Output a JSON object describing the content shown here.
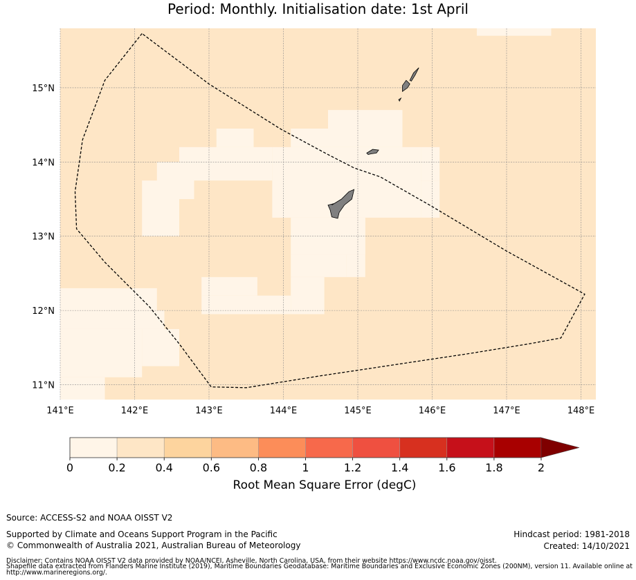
{
  "title": {
    "line2": "Period: Monthly. Initialisation date: 1st April"
  },
  "map": {
    "lat_ticks": [
      15,
      14,
      13,
      12,
      11
    ],
    "lat_labels": [
      "15°N",
      "14°N",
      "13°N",
      "12°N",
      "11°N"
    ],
    "lon_ticks": [
      141,
      142,
      143,
      144,
      145,
      146,
      147,
      148
    ],
    "lon_labels": [
      "141°E",
      "142°E",
      "143°E",
      "144°E",
      "145°E",
      "146°E",
      "147°E",
      "148°E"
    ],
    "extent": {
      "lon_min": 141,
      "lon_max": 148.2,
      "lat_min": 10.8,
      "lat_max": 15.8
    },
    "ocean_color": "#fee6c6",
    "land_color": "#808080",
    "eez_boundary": [
      [
        142.1,
        15.73
      ],
      [
        141.6,
        15.1
      ],
      [
        141.3,
        14.3
      ],
      [
        141.2,
        13.6
      ],
      [
        141.22,
        13.1
      ],
      [
        141.6,
        12.65
      ],
      [
        142.2,
        12.05
      ],
      [
        142.6,
        11.55
      ],
      [
        143.03,
        10.97
      ],
      [
        143.5,
        10.96
      ],
      [
        144.5,
        11.12
      ],
      [
        145.5,
        11.27
      ],
      [
        146.5,
        11.42
      ],
      [
        147.3,
        11.55
      ],
      [
        147.73,
        11.63
      ],
      [
        148.05,
        12.22
      ],
      [
        147.0,
        12.8
      ],
      [
        146.0,
        13.4
      ],
      [
        145.3,
        13.8
      ],
      [
        144.95,
        13.92
      ],
      [
        144.6,
        14.1
      ],
      [
        143.97,
        14.44
      ],
      [
        143.0,
        15.05
      ],
      [
        142.1,
        15.73
      ]
    ],
    "light_cells": [
      [
        141.0,
        141.6,
        10.8,
        11.1
      ],
      [
        141.0,
        142.1,
        11.1,
        11.75
      ],
      [
        141.0,
        142.4,
        11.75,
        12.0
      ],
      [
        141.0,
        142.3,
        12.0,
        12.3
      ],
      [
        142.1,
        142.6,
        11.25,
        11.75
      ],
      [
        142.9,
        143.65,
        12.2,
        12.45
      ],
      [
        142.9,
        144.1,
        11.95,
        12.2
      ],
      [
        144.1,
        144.55,
        11.95,
        12.45
      ],
      [
        144.1,
        144.85,
        12.45,
        12.75
      ],
      [
        144.85,
        145.1,
        12.45,
        12.75
      ],
      [
        144.85,
        145.1,
        12.75,
        13.25
      ],
      [
        144.1,
        145.1,
        12.75,
        13.25
      ],
      [
        143.85,
        145.85,
        13.25,
        14.2
      ],
      [
        144.1,
        145.6,
        14.2,
        14.45
      ],
      [
        144.6,
        145.6,
        14.45,
        14.7
      ],
      [
        142.6,
        143.85,
        13.75,
        14.2
      ],
      [
        143.1,
        143.6,
        14.2,
        14.45
      ],
      [
        142.3,
        142.8,
        13.5,
        14.0
      ],
      [
        142.1,
        142.6,
        13.0,
        13.75
      ],
      [
        145.85,
        146.1,
        13.5,
        13.75
      ],
      [
        145.85,
        146.1,
        13.25,
        13.5
      ],
      [
        146.6,
        147.6,
        15.7,
        15.8
      ],
      [
        145.85,
        146.1,
        13.75,
        14.2
      ]
    ],
    "islands": [
      [
        [
          144.65,
          13.42
        ],
        [
          144.78,
          13.5
        ],
        [
          144.88,
          13.6
        ],
        [
          144.95,
          13.63
        ],
        [
          144.92,
          13.5
        ],
        [
          144.82,
          13.42
        ],
        [
          144.75,
          13.32
        ],
        [
          144.73,
          13.24
        ],
        [
          144.65,
          13.26
        ],
        [
          144.63,
          13.35
        ],
        [
          144.6,
          13.42
        ],
        [
          144.68,
          13.44
        ]
      ],
      [
        [
          145.12,
          14.12
        ],
        [
          145.2,
          14.17
        ],
        [
          145.28,
          14.16
        ],
        [
          145.25,
          14.12
        ],
        [
          145.18,
          14.11
        ],
        [
          145.14,
          14.1
        ]
      ],
      [
        [
          145.6,
          14.95
        ],
        [
          145.67,
          15.0
        ],
        [
          145.7,
          15.05
        ],
        [
          145.65,
          15.1
        ],
        [
          145.6,
          15.03
        ]
      ],
      [
        [
          145.7,
          15.1
        ],
        [
          145.75,
          15.2
        ],
        [
          145.82,
          15.27
        ],
        [
          145.77,
          15.17
        ],
        [
          145.72,
          15.09
        ]
      ],
      [
        [
          145.55,
          14.84
        ],
        [
          145.58,
          14.86
        ],
        [
          145.56,
          14.82
        ]
      ]
    ]
  },
  "colorbar": {
    "ticks": [
      "0",
      "0.2",
      "0.4",
      "0.6",
      "0.8",
      "1",
      "1.2",
      "1.4",
      "1.6",
      "1.8",
      "2"
    ],
    "colors": [
      "#fff5e8",
      "#fee6c6",
      "#fdd49e",
      "#fdbb84",
      "#fc8d59",
      "#f7694b",
      "#ef5040",
      "#d7301f",
      "#c6101a",
      "#a80000",
      "#7f0000"
    ],
    "label": "Root Mean Square Error (degC)"
  },
  "footer": {
    "source": "Source: ACCESS-S2 and NOAA OISST V2",
    "supported": "Supported by Climate and Oceans Support Program in the Pacific",
    "copyright": "© Commonwealth of Australia 2021, Australian Bureau of Meteorology",
    "hindcast": "Hindcast period: 1981-2018",
    "created": "Created: 14/10/2021",
    "disclaimer1": "Disclaimer: Contains NOAA OISST V2 data provided by NOAA/NCEI, Asheville, North Carolina, USA, from their website https://www.ncdc.noaa.gov/oisst.",
    "disclaimer2": "Shapefile data extracted from Flanders Marine Institute (2019), Maritime Boundaries Geodatabase: Maritime Boundaries and Exclusive Economic Zones (200NM), version 11. Available online at",
    "disclaimer3": "http://www.marineregions.org/."
  }
}
